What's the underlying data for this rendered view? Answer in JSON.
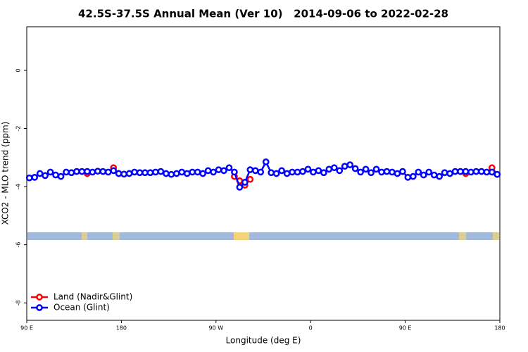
{
  "chart_data": {
    "type": "line",
    "title": "42.5S-37.5S Annual Mean (Ver 10)   2014-09-06 to 2022-02-28",
    "xlabel": "Longitude (deg E)",
    "ylabel": "XCO2 - MLO trend (ppm)",
    "xlim": [
      90,
      540
    ],
    "ylim": [
      -8.6,
      1.5
    ],
    "xticks": [
      {
        "value": 90,
        "label": "90 E"
      },
      {
        "value": 180,
        "label": "180"
      },
      {
        "value": 270,
        "label": "90 W"
      },
      {
        "value": 360,
        "label": "0"
      },
      {
        "value": 450,
        "label": "90 E"
      },
      {
        "value": 540,
        "label": "180"
      }
    ],
    "yticks": [
      0,
      -2,
      -4,
      -6,
      -8
    ],
    "legend": "bottom-left",
    "x": [
      92.5,
      97.5,
      102.5,
      107.5,
      112.5,
      117.5,
      122.5,
      127.5,
      132.5,
      137.5,
      142.5,
      147.5,
      152.5,
      157.5,
      162.5,
      167.5,
      172.5,
      177.5,
      182.5,
      187.5,
      192.5,
      197.5,
      202.5,
      207.5,
      212.5,
      217.5,
      222.5,
      227.5,
      232.5,
      237.5,
      242.5,
      247.5,
      252.5,
      257.5,
      262.5,
      267.5,
      272.5,
      277.5,
      282.5,
      287.5,
      292.5,
      297.5,
      302.5,
      307.5,
      312.5,
      317.5,
      322.5,
      327.5,
      332.5,
      337.5,
      342.5,
      347.5,
      352.5,
      357.5,
      362.5,
      367.5,
      372.5,
      377.5,
      382.5,
      387.5,
      392.5,
      397.5,
      402.5,
      407.5,
      412.5,
      417.5,
      422.5,
      427.5,
      432.5,
      437.5,
      442.5,
      447.5,
      452.5,
      457.5,
      462.5,
      467.5,
      472.5,
      477.5,
      482.5,
      487.5,
      492.5,
      497.5,
      502.5,
      507.5,
      512.5,
      517.5,
      522.5,
      527.5,
      532.5,
      537.5
    ],
    "series": [
      {
        "name": "Land (Nadir&Glint)",
        "color": "#ff0000",
        "values": [
          null,
          null,
          null,
          null,
          null,
          null,
          null,
          null,
          null,
          null,
          null,
          -3.55,
          null,
          null,
          null,
          null,
          -3.35,
          -3.55,
          null,
          null,
          null,
          null,
          null,
          null,
          null,
          null,
          null,
          null,
          null,
          null,
          null,
          null,
          null,
          null,
          null,
          null,
          null,
          null,
          null,
          -3.65,
          -3.8,
          -3.95,
          -3.75,
          null,
          null,
          null,
          null,
          null,
          null,
          null,
          null,
          null,
          null,
          null,
          null,
          null,
          null,
          null,
          null,
          null,
          null,
          null,
          null,
          null,
          null,
          null,
          null,
          null,
          null,
          null,
          null,
          null,
          null,
          null,
          null,
          null,
          null,
          null,
          null,
          null,
          null,
          null,
          null,
          -3.55,
          null,
          null,
          null,
          null,
          -3.35,
          -3.58
        ]
      },
      {
        "name": "Ocean (Glint)",
        "color": "#0000ff",
        "values": [
          -3.7,
          -3.68,
          -3.55,
          -3.62,
          -3.5,
          -3.6,
          -3.65,
          -3.5,
          -3.52,
          -3.48,
          -3.48,
          -3.48,
          -3.5,
          -3.47,
          -3.48,
          -3.5,
          -3.45,
          -3.55,
          -3.57,
          -3.55,
          -3.5,
          -3.52,
          -3.52,
          -3.52,
          -3.5,
          -3.48,
          -3.55,
          -3.58,
          -3.55,
          -3.5,
          -3.55,
          -3.5,
          -3.5,
          -3.55,
          -3.45,
          -3.5,
          -3.42,
          -3.45,
          -3.35,
          -3.5,
          -4.02,
          -3.85,
          -3.42,
          -3.45,
          -3.5,
          -3.15,
          -3.52,
          -3.55,
          -3.45,
          -3.55,
          -3.5,
          -3.5,
          -3.48,
          -3.4,
          -3.5,
          -3.45,
          -3.52,
          -3.4,
          -3.35,
          -3.45,
          -3.3,
          -3.25,
          -3.38,
          -3.5,
          -3.4,
          -3.52,
          -3.4,
          -3.5,
          -3.48,
          -3.5,
          -3.55,
          -3.48,
          -3.68,
          -3.65,
          -3.5,
          -3.6,
          -3.5,
          -3.6,
          -3.65,
          -3.52,
          -3.55,
          -3.48,
          -3.48,
          -3.48,
          -3.5,
          -3.48,
          -3.48,
          -3.5,
          -3.5,
          -3.58
        ]
      }
    ]
  }
}
